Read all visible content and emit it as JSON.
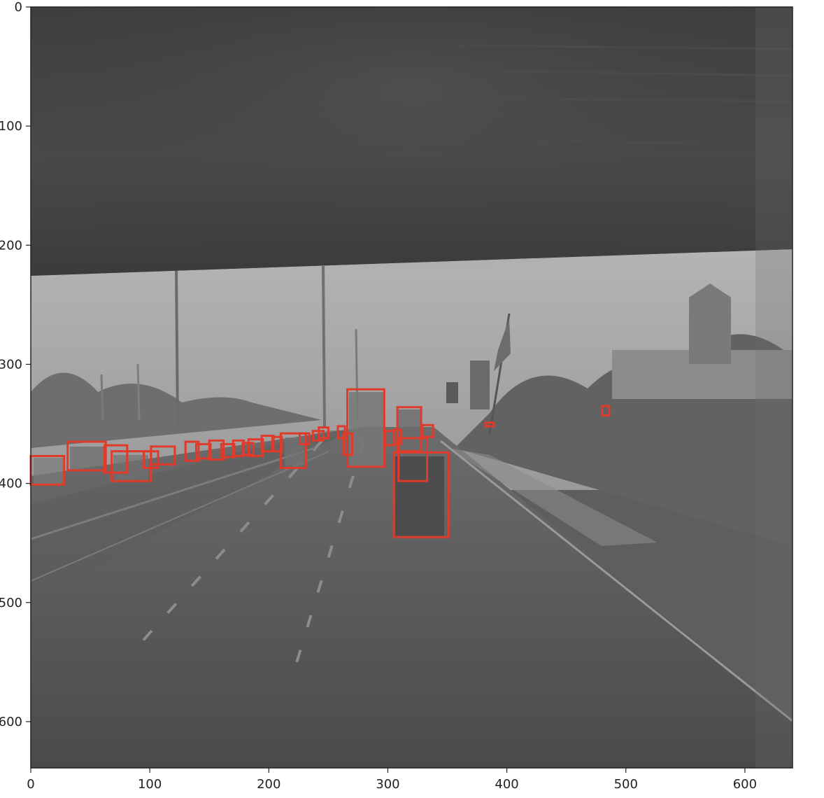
{
  "figure": {
    "x_ticks": [
      "0",
      "100",
      "200",
      "300",
      "400",
      "500",
      "600"
    ],
    "y_ticks": [
      "0",
      "100",
      "200",
      "300",
      "400",
      "500",
      "600"
    ],
    "box_color": "#e03a2a"
  },
  "chart_data": {
    "type": "scatter",
    "xlim": [
      0,
      640
    ],
    "ylim": [
      640,
      0
    ],
    "grid": false,
    "boxes": [
      [
        0,
        377,
        28,
        401
      ],
      [
        31,
        365,
        63,
        389
      ],
      [
        62,
        368,
        81,
        391
      ],
      [
        68,
        373,
        101,
        398
      ],
      [
        95,
        373,
        107,
        387
      ],
      [
        101,
        369,
        121,
        384
      ],
      [
        130,
        365,
        141,
        381
      ],
      [
        139,
        367,
        151,
        379
      ],
      [
        150,
        364,
        162,
        380
      ],
      [
        160,
        367,
        171,
        378
      ],
      [
        170,
        364,
        179,
        377
      ],
      [
        178,
        366,
        187,
        376
      ],
      [
        183,
        363,
        195,
        377
      ],
      [
        194,
        360,
        204,
        373
      ],
      [
        203,
        361,
        211,
        373
      ],
      [
        210,
        358,
        231,
        387
      ],
      [
        226,
        358,
        234,
        367
      ],
      [
        237,
        356,
        246,
        364
      ],
      [
        242,
        353,
        250,
        362
      ],
      [
        258,
        352,
        264,
        362
      ],
      [
        263,
        358,
        270,
        376
      ],
      [
        266,
        321,
        297,
        386
      ],
      [
        298,
        356,
        305,
        368
      ],
      [
        305,
        355,
        311,
        367
      ],
      [
        308,
        336,
        328,
        373
      ],
      [
        309,
        362,
        333,
        398
      ],
      [
        305,
        374,
        351,
        445
      ],
      [
        329,
        351,
        338,
        361
      ],
      [
        382,
        349,
        389,
        352
      ],
      [
        480,
        335,
        486,
        343
      ]
    ]
  }
}
